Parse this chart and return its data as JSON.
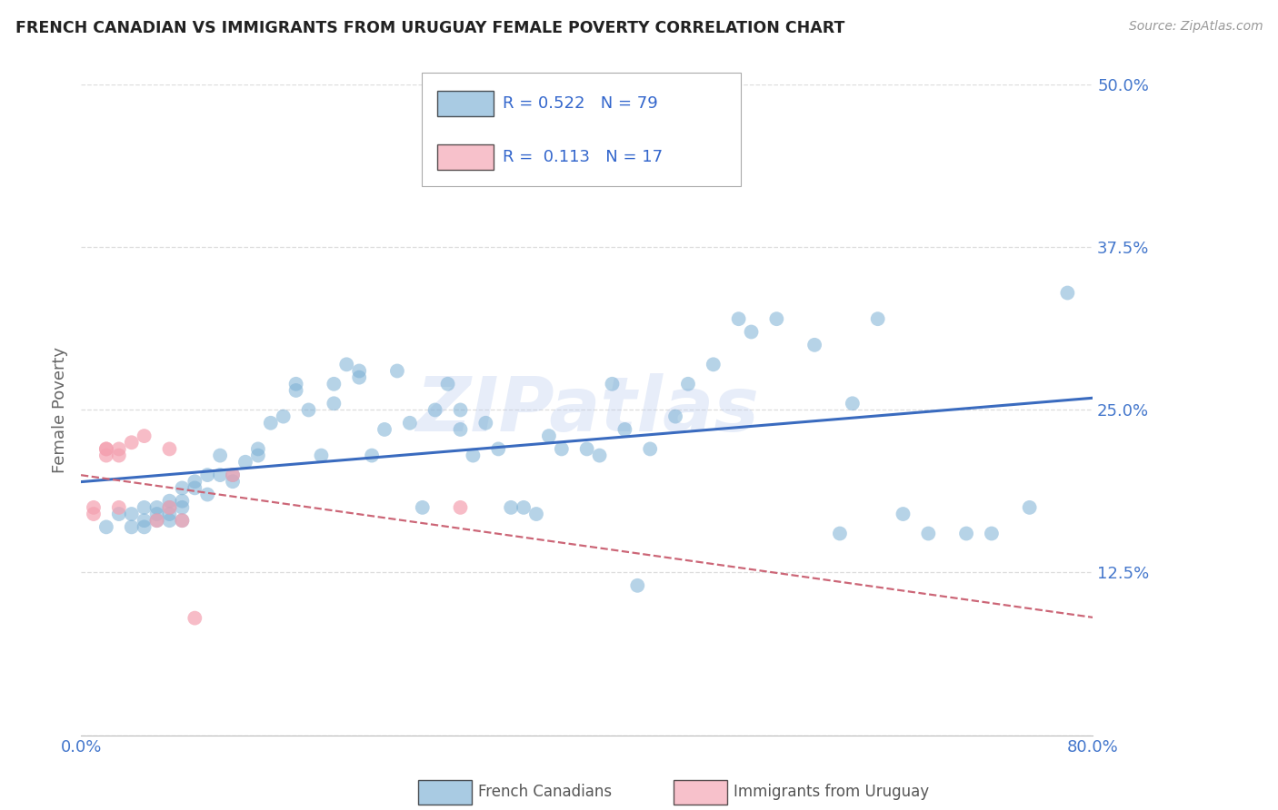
{
  "title": "FRENCH CANADIAN VS IMMIGRANTS FROM URUGUAY FEMALE POVERTY CORRELATION CHART",
  "source": "Source: ZipAtlas.com",
  "ylabel": "Female Poverty",
  "xlim": [
    0.0,
    0.8
  ],
  "ylim": [
    0.0,
    0.5
  ],
  "yticks": [
    0.0,
    0.125,
    0.25,
    0.375,
    0.5
  ],
  "ytick_labels": [
    "",
    "12.5%",
    "25.0%",
    "37.5%",
    "50.0%"
  ],
  "xticks": [
    0.0,
    0.2,
    0.4,
    0.6,
    0.8
  ],
  "xtick_labels": [
    "0.0%",
    "",
    "",
    "",
    "80.0%"
  ],
  "background_color": "#ffffff",
  "grid_color": "#dddddd",
  "blue_color": "#7bafd4",
  "pink_color": "#f4a0b0",
  "blue_line_color": "#3a6bbf",
  "pink_line_color": "#cc6677",
  "legend_R1": "0.522",
  "legend_N1": "79",
  "legend_R2": "0.113",
  "legend_N2": "17",
  "label1": "French Canadians",
  "label2": "Immigrants from Uruguay",
  "watermark": "ZIPatlas",
  "blue_points_x": [
    0.02,
    0.03,
    0.04,
    0.04,
    0.05,
    0.05,
    0.05,
    0.06,
    0.06,
    0.06,
    0.07,
    0.07,
    0.07,
    0.07,
    0.08,
    0.08,
    0.08,
    0.08,
    0.09,
    0.09,
    0.1,
    0.1,
    0.11,
    0.11,
    0.12,
    0.12,
    0.13,
    0.14,
    0.14,
    0.15,
    0.16,
    0.17,
    0.17,
    0.18,
    0.19,
    0.2,
    0.2,
    0.21,
    0.22,
    0.22,
    0.23,
    0.24,
    0.25,
    0.26,
    0.27,
    0.28,
    0.29,
    0.3,
    0.3,
    0.31,
    0.32,
    0.33,
    0.34,
    0.35,
    0.36,
    0.37,
    0.38,
    0.4,
    0.41,
    0.42,
    0.43,
    0.44,
    0.45,
    0.47,
    0.48,
    0.5,
    0.52,
    0.53,
    0.55,
    0.58,
    0.6,
    0.61,
    0.63,
    0.65,
    0.67,
    0.7,
    0.72,
    0.75,
    0.78
  ],
  "blue_points_y": [
    0.16,
    0.17,
    0.17,
    0.16,
    0.175,
    0.165,
    0.16,
    0.175,
    0.17,
    0.165,
    0.18,
    0.175,
    0.17,
    0.165,
    0.19,
    0.18,
    0.175,
    0.165,
    0.195,
    0.19,
    0.2,
    0.185,
    0.215,
    0.2,
    0.2,
    0.195,
    0.21,
    0.22,
    0.215,
    0.24,
    0.245,
    0.27,
    0.265,
    0.25,
    0.215,
    0.27,
    0.255,
    0.285,
    0.28,
    0.275,
    0.215,
    0.235,
    0.28,
    0.24,
    0.175,
    0.25,
    0.27,
    0.25,
    0.235,
    0.215,
    0.24,
    0.22,
    0.175,
    0.175,
    0.17,
    0.23,
    0.22,
    0.22,
    0.215,
    0.27,
    0.235,
    0.115,
    0.22,
    0.245,
    0.27,
    0.285,
    0.32,
    0.31,
    0.32,
    0.3,
    0.155,
    0.255,
    0.32,
    0.17,
    0.155,
    0.155,
    0.155,
    0.175,
    0.34
  ],
  "pink_points_x": [
    0.01,
    0.01,
    0.02,
    0.02,
    0.02,
    0.03,
    0.03,
    0.03,
    0.04,
    0.05,
    0.06,
    0.07,
    0.08,
    0.09,
    0.12,
    0.3,
    0.07
  ],
  "pink_points_y": [
    0.175,
    0.17,
    0.22,
    0.22,
    0.215,
    0.175,
    0.22,
    0.215,
    0.225,
    0.23,
    0.165,
    0.175,
    0.165,
    0.09,
    0.2,
    0.175,
    0.22
  ]
}
